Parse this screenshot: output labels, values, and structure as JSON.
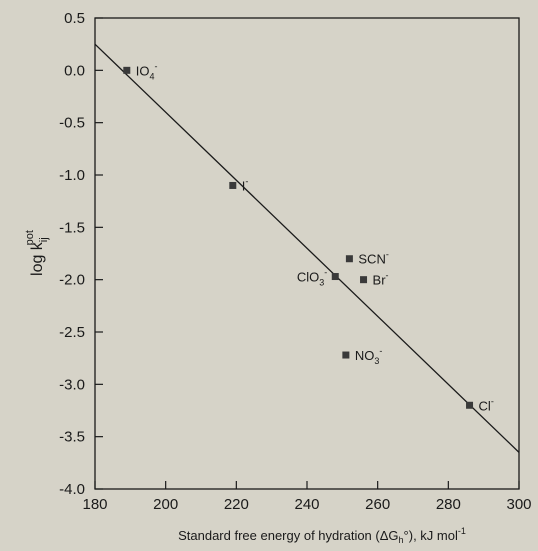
{
  "chart_data": {
    "type": "scatter",
    "xlabel": "Standard free energy of hydration (ΔG",
    "xlabel_sub": "h",
    "xlabel_rest": "°), kJ mol",
    "xlabel_sup": "-1",
    "ylabel_main": "log k",
    "ylabel_sub": "ij",
    "ylabel_sup": "pot",
    "xlim": [
      180,
      300
    ],
    "ylim": [
      -4.0,
      0.5
    ],
    "x_ticks": [
      180,
      200,
      220,
      240,
      260,
      280,
      300
    ],
    "x_tick_labels": [
      "180",
      "200",
      "220",
      "240",
      "260",
      "280",
      "300"
    ],
    "y_ticks": [
      0.5,
      0.0,
      -0.5,
      -1.0,
      -1.5,
      -2.0,
      -2.5,
      -3.0,
      -3.5,
      -4.0
    ],
    "y_tick_labels": [
      "0.5",
      "0.0",
      "-0.5",
      "-1.0",
      "-1.5",
      "-2.0",
      "-2.5",
      "-3.0",
      "-3.5",
      "-4.0"
    ],
    "grid": false,
    "points": [
      {
        "label": "IO",
        "sub": "4",
        "sup": "-",
        "x": 189,
        "y": 0.0,
        "label_pos": "right"
      },
      {
        "label": "I",
        "sub": "",
        "sup": "-",
        "x": 219,
        "y": -1.1,
        "label_pos": "right"
      },
      {
        "label": "SCN",
        "sub": "",
        "sup": "-",
        "x": 252,
        "y": -1.8,
        "label_pos": "right"
      },
      {
        "label": "ClO",
        "sub": "3",
        "sup": "-",
        "x": 248,
        "y": -1.97,
        "label_pos": "left"
      },
      {
        "label": "Br",
        "sub": "",
        "sup": "-",
        "x": 256,
        "y": -2.0,
        "label_pos": "right"
      },
      {
        "label": "NO",
        "sub": "3",
        "sup": "-",
        "x": 251,
        "y": -2.72,
        "label_pos": "right"
      },
      {
        "label": "Cl",
        "sub": "",
        "sup": "-",
        "x": 286,
        "y": -3.2,
        "label_pos": "right"
      }
    ],
    "fit_line": {
      "x": [
        180,
        300
      ],
      "y": [
        0.25,
        -3.65
      ]
    },
    "colors": {
      "marker": "#3a3a3a",
      "line": "#1a1a1a",
      "axis": "#1a1a1a"
    }
  }
}
